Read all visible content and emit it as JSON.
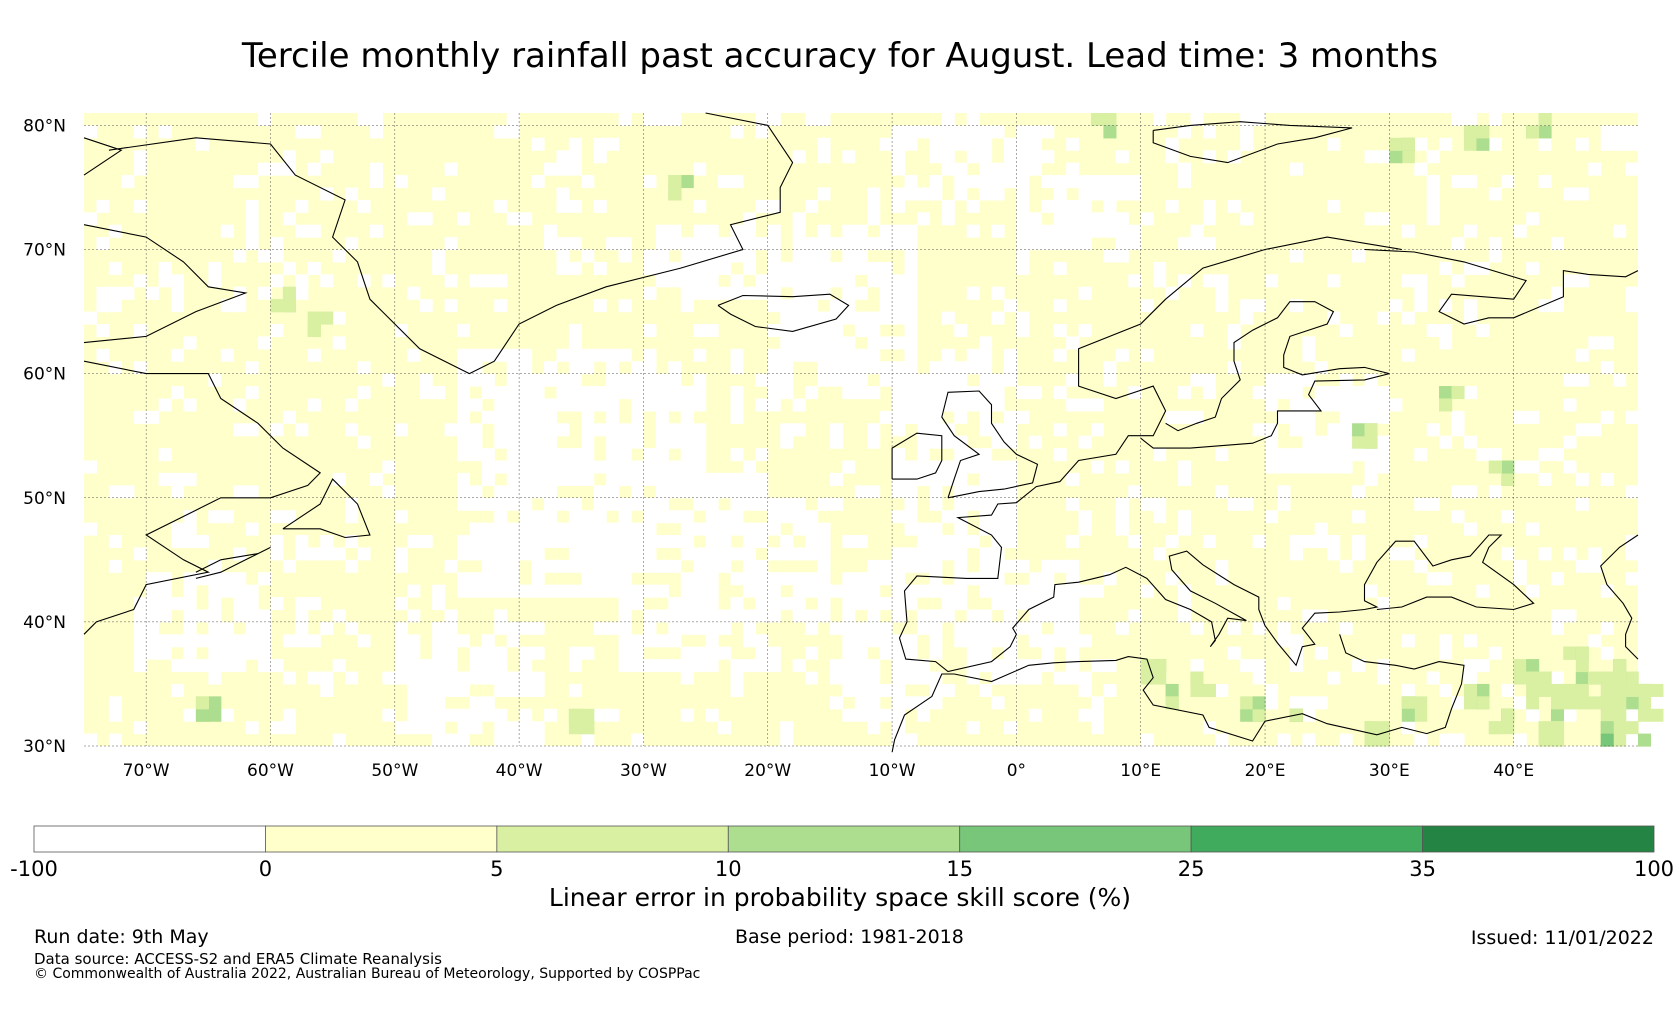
{
  "title": "Tercile monthly rainfall past accuracy for August. Lead time: 3 months",
  "map": {
    "region": "North Atlantic and Europe",
    "lon_range": [
      -75,
      50
    ],
    "lat_range": [
      30,
      81
    ],
    "lat_labels": [
      "80°N",
      "70°N",
      "60°N",
      "50°N",
      "40°N",
      "30°N"
    ],
    "lat_values": [
      80,
      70,
      60,
      50,
      40,
      30
    ],
    "lon_labels": [
      "70°W",
      "60°W",
      "50°W",
      "40°W",
      "30°W",
      "20°W",
      "10°W",
      "0°",
      "10°E",
      "20°E",
      "30°E",
      "40°E"
    ],
    "lon_values": [
      -70,
      -60,
      -50,
      -40,
      -30,
      -20,
      -10,
      0,
      10,
      20,
      30,
      40
    ],
    "gridlines": true,
    "coastline_color": "#000000"
  },
  "colorbar": {
    "boundaries": [
      -100,
      0,
      5,
      10,
      15,
      25,
      35,
      100
    ],
    "tick_labels": [
      "-100",
      "0",
      "5",
      "10",
      "15",
      "25",
      "35",
      "100"
    ],
    "colors": [
      "#ffffff",
      "#ffffcc",
      "#d9f0a3",
      "#addd8e",
      "#78c679",
      "#41ab5d",
      "#238443"
    ],
    "label": "Linear error in probability space skill score (%)"
  },
  "footer": {
    "run_date": "Run date: 9th May",
    "base_period": "Base period: 1981-2018",
    "issued": "Issued: 11/01/2022",
    "data_source": "Data source: ACCESS-S2 and ERA5 Climate Reanalysis",
    "copyright": "© Commonwealth of Australia 2022, Australian Bureau of Meteorology, Supported by COSPPac"
  }
}
